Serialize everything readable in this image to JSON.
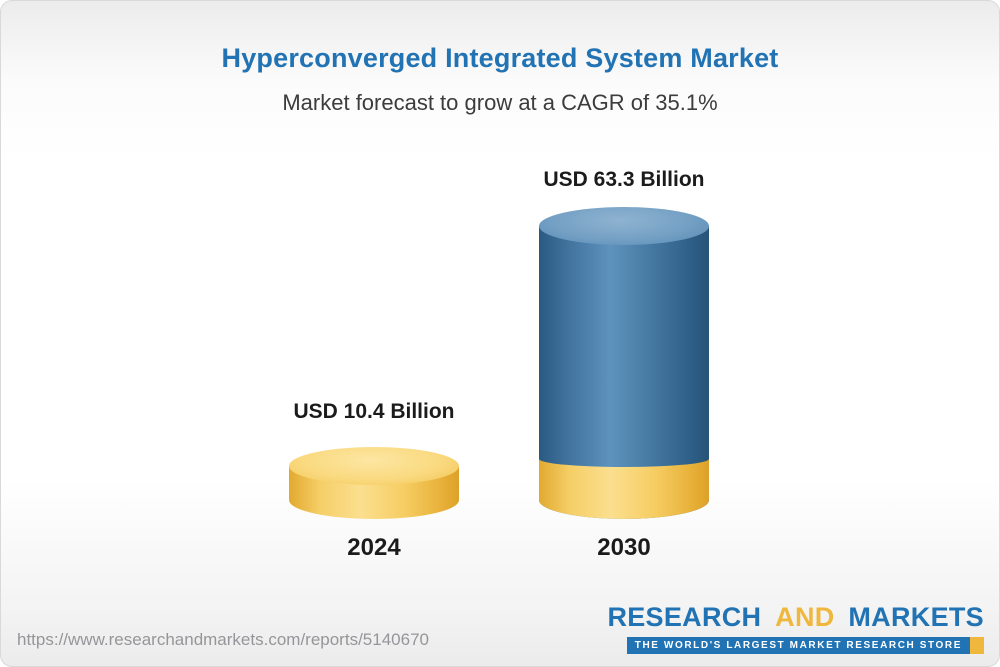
{
  "header": {
    "title": "Hyperconverged Integrated System Market",
    "subtitle": "Market forecast to grow at a CAGR of 35.1%"
  },
  "chart_data": {
    "type": "bar",
    "subtype": "3d-cylinder",
    "title": "Hyperconverged Integrated System Market",
    "subtitle": "Market forecast to grow at a CAGR of 35.1%",
    "cagr_percent": 35.1,
    "unit": "USD Billion",
    "categories": [
      "2024",
      "2030"
    ],
    "values": [
      10.4,
      63.3
    ],
    "value_labels": [
      "USD 10.4 Billion",
      "USD 63.3 Billion"
    ],
    "bar_colors": [
      "#F5C95E",
      "#3D74A3"
    ],
    "base_segment_2030": {
      "color": "#F5C95E",
      "note": "gold base band at bottom of 2030 cylinder matching 2024 bar color"
    },
    "grid": false,
    "legend": "none",
    "xlabel": "",
    "ylabel": ""
  },
  "footer": {
    "url": "https://www.researchandmarkets.com/reports/5140670",
    "logo": {
      "word_research": "RESEARCH",
      "word_and": "AND",
      "word_markets": "MARKETS",
      "tagline": "THE WORLD'S LARGEST MARKET RESEARCH STORE"
    }
  },
  "colors": {
    "title_blue": "#2173B4",
    "logo_blue": "#2173B4",
    "logo_gold": "#EFB83D",
    "bar_yellow": "#F5C95E",
    "bar_blue": "#3D74A3",
    "text_dark": "#1b1b1b",
    "url_gray": "#96969a"
  }
}
